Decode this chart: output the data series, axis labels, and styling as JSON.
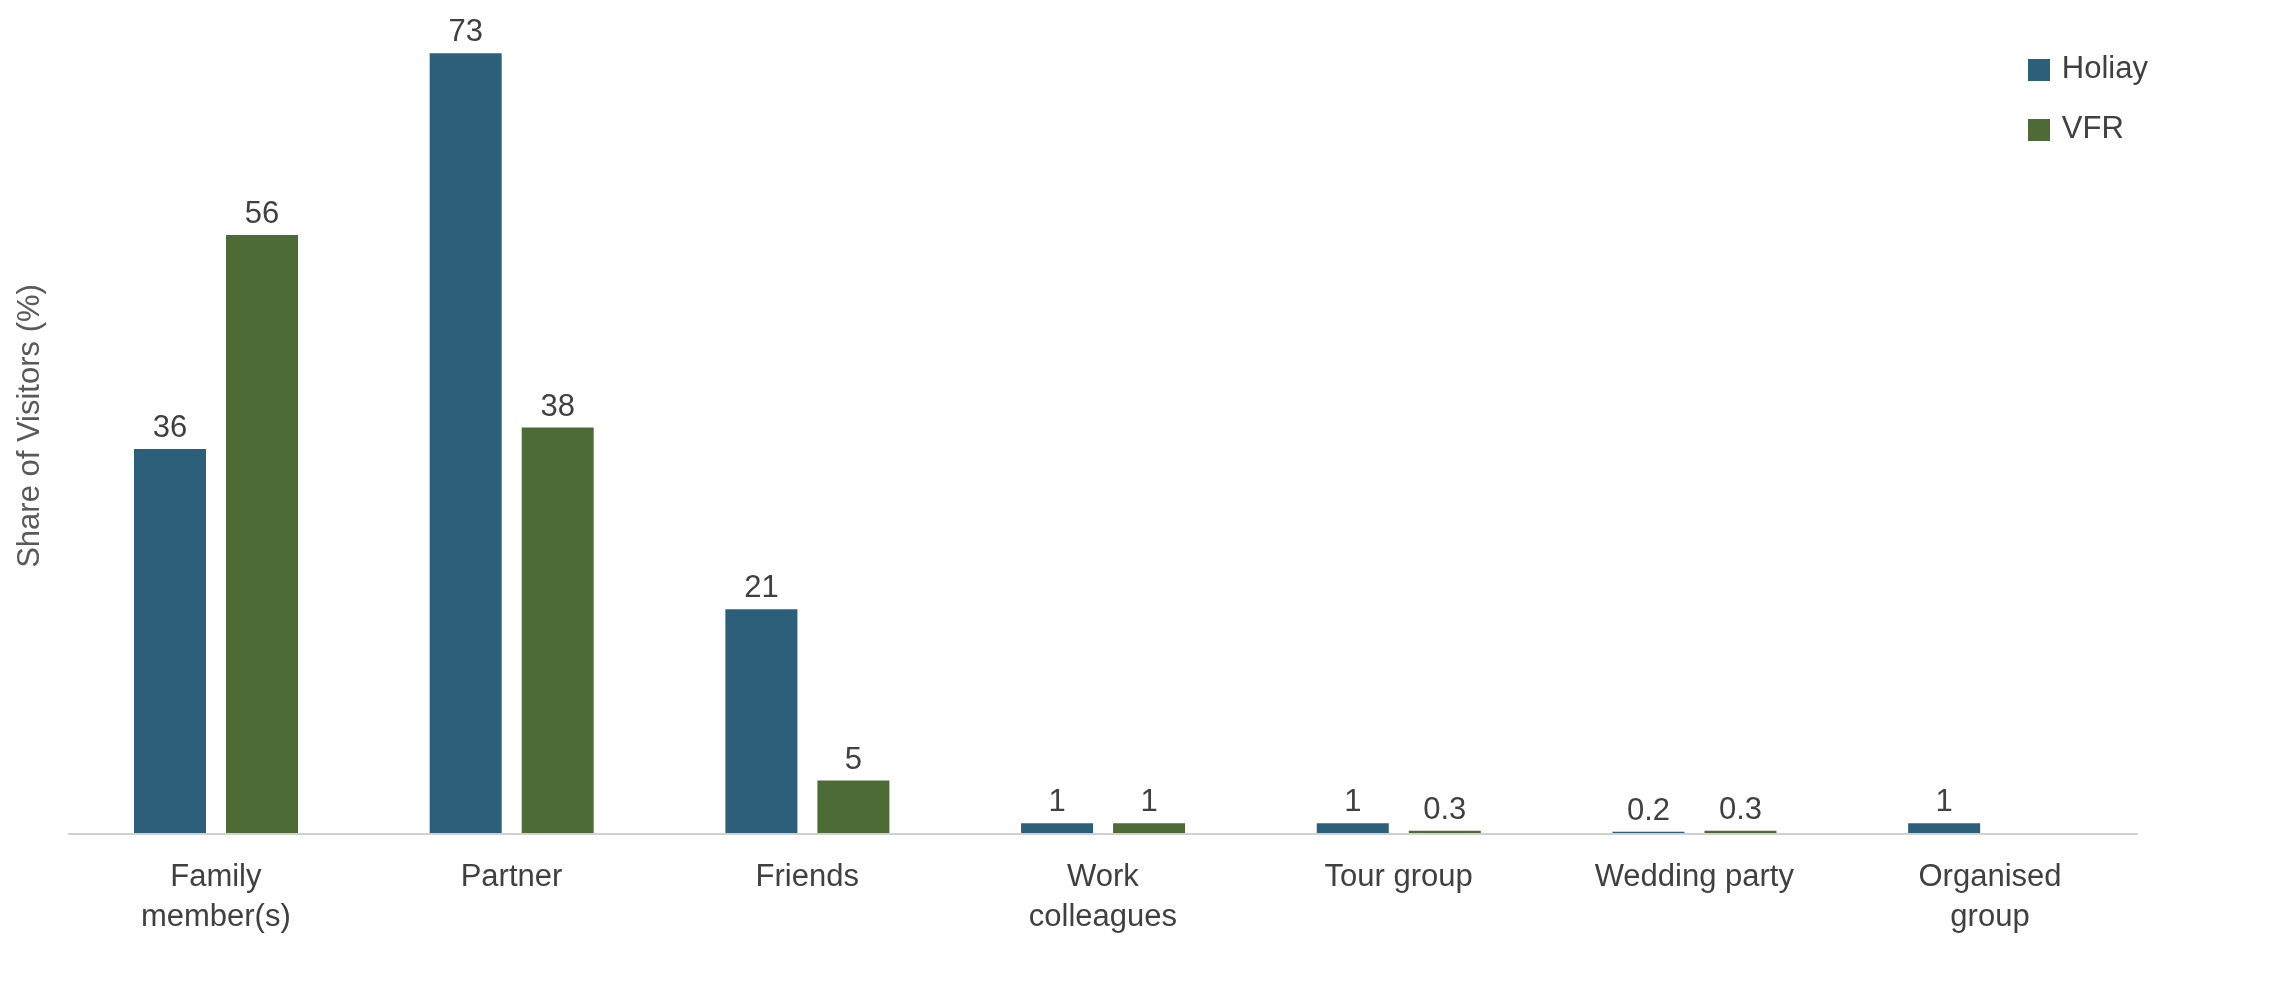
{
  "chart_data": {
    "type": "bar",
    "ylabel": "Share of Visitors (%)",
    "categories": [
      "Family member(s)",
      "Partner",
      "Friends",
      "Work colleagues",
      "Tour group",
      "Wedding party",
      "Organised group"
    ],
    "series": [
      {
        "name": "Holiay",
        "color": "#2b5f7a",
        "values": [
          36,
          73,
          21,
          1,
          1,
          0.2,
          1
        ]
      },
      {
        "name": "VFR",
        "color": "#4d6b36",
        "values": [
          56,
          38,
          5,
          1,
          0.3,
          0.3,
          null
        ]
      }
    ],
    "data_labels": true,
    "legend": "top right",
    "grid": false
  }
}
